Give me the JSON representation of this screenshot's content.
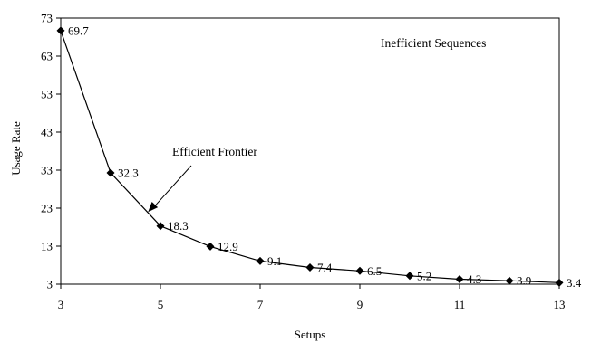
{
  "chart_data": {
    "type": "line",
    "title": "",
    "xlabel": "Setups",
    "ylabel": "Usage Rate",
    "xlim": [
      3,
      13
    ],
    "ylim": [
      3,
      73
    ],
    "xticks": [
      "3",
      "5",
      "7",
      "9",
      "11",
      "13"
    ],
    "yticks": [
      "3",
      "13",
      "23",
      "33",
      "43",
      "53",
      "63",
      "73"
    ],
    "grid": false,
    "legend": "none",
    "line_color": "#000000",
    "marker": "diamond",
    "series": [
      {
        "x": [
          3,
          4,
          5,
          6,
          7,
          8,
          9,
          10,
          11,
          12,
          13
        ],
        "values": [
          69.7,
          32.3,
          18.3,
          12.9,
          9.1,
          7.4,
          6.5,
          5.2,
          4.3,
          3.9,
          3.4
        ],
        "labels": [
          "69.7",
          "32.3",
          "18.3",
          "12.9",
          "9.1",
          "7.4",
          "6.5",
          "5.2",
          "4.3",
          "3.9",
          "3.4"
        ]
      }
    ],
    "annotations": {
      "region_label": "Inefficient Sequences",
      "frontier_label": "Efficient Frontier",
      "frontier_target": {
        "x": 4.75,
        "y": 22
      }
    }
  }
}
